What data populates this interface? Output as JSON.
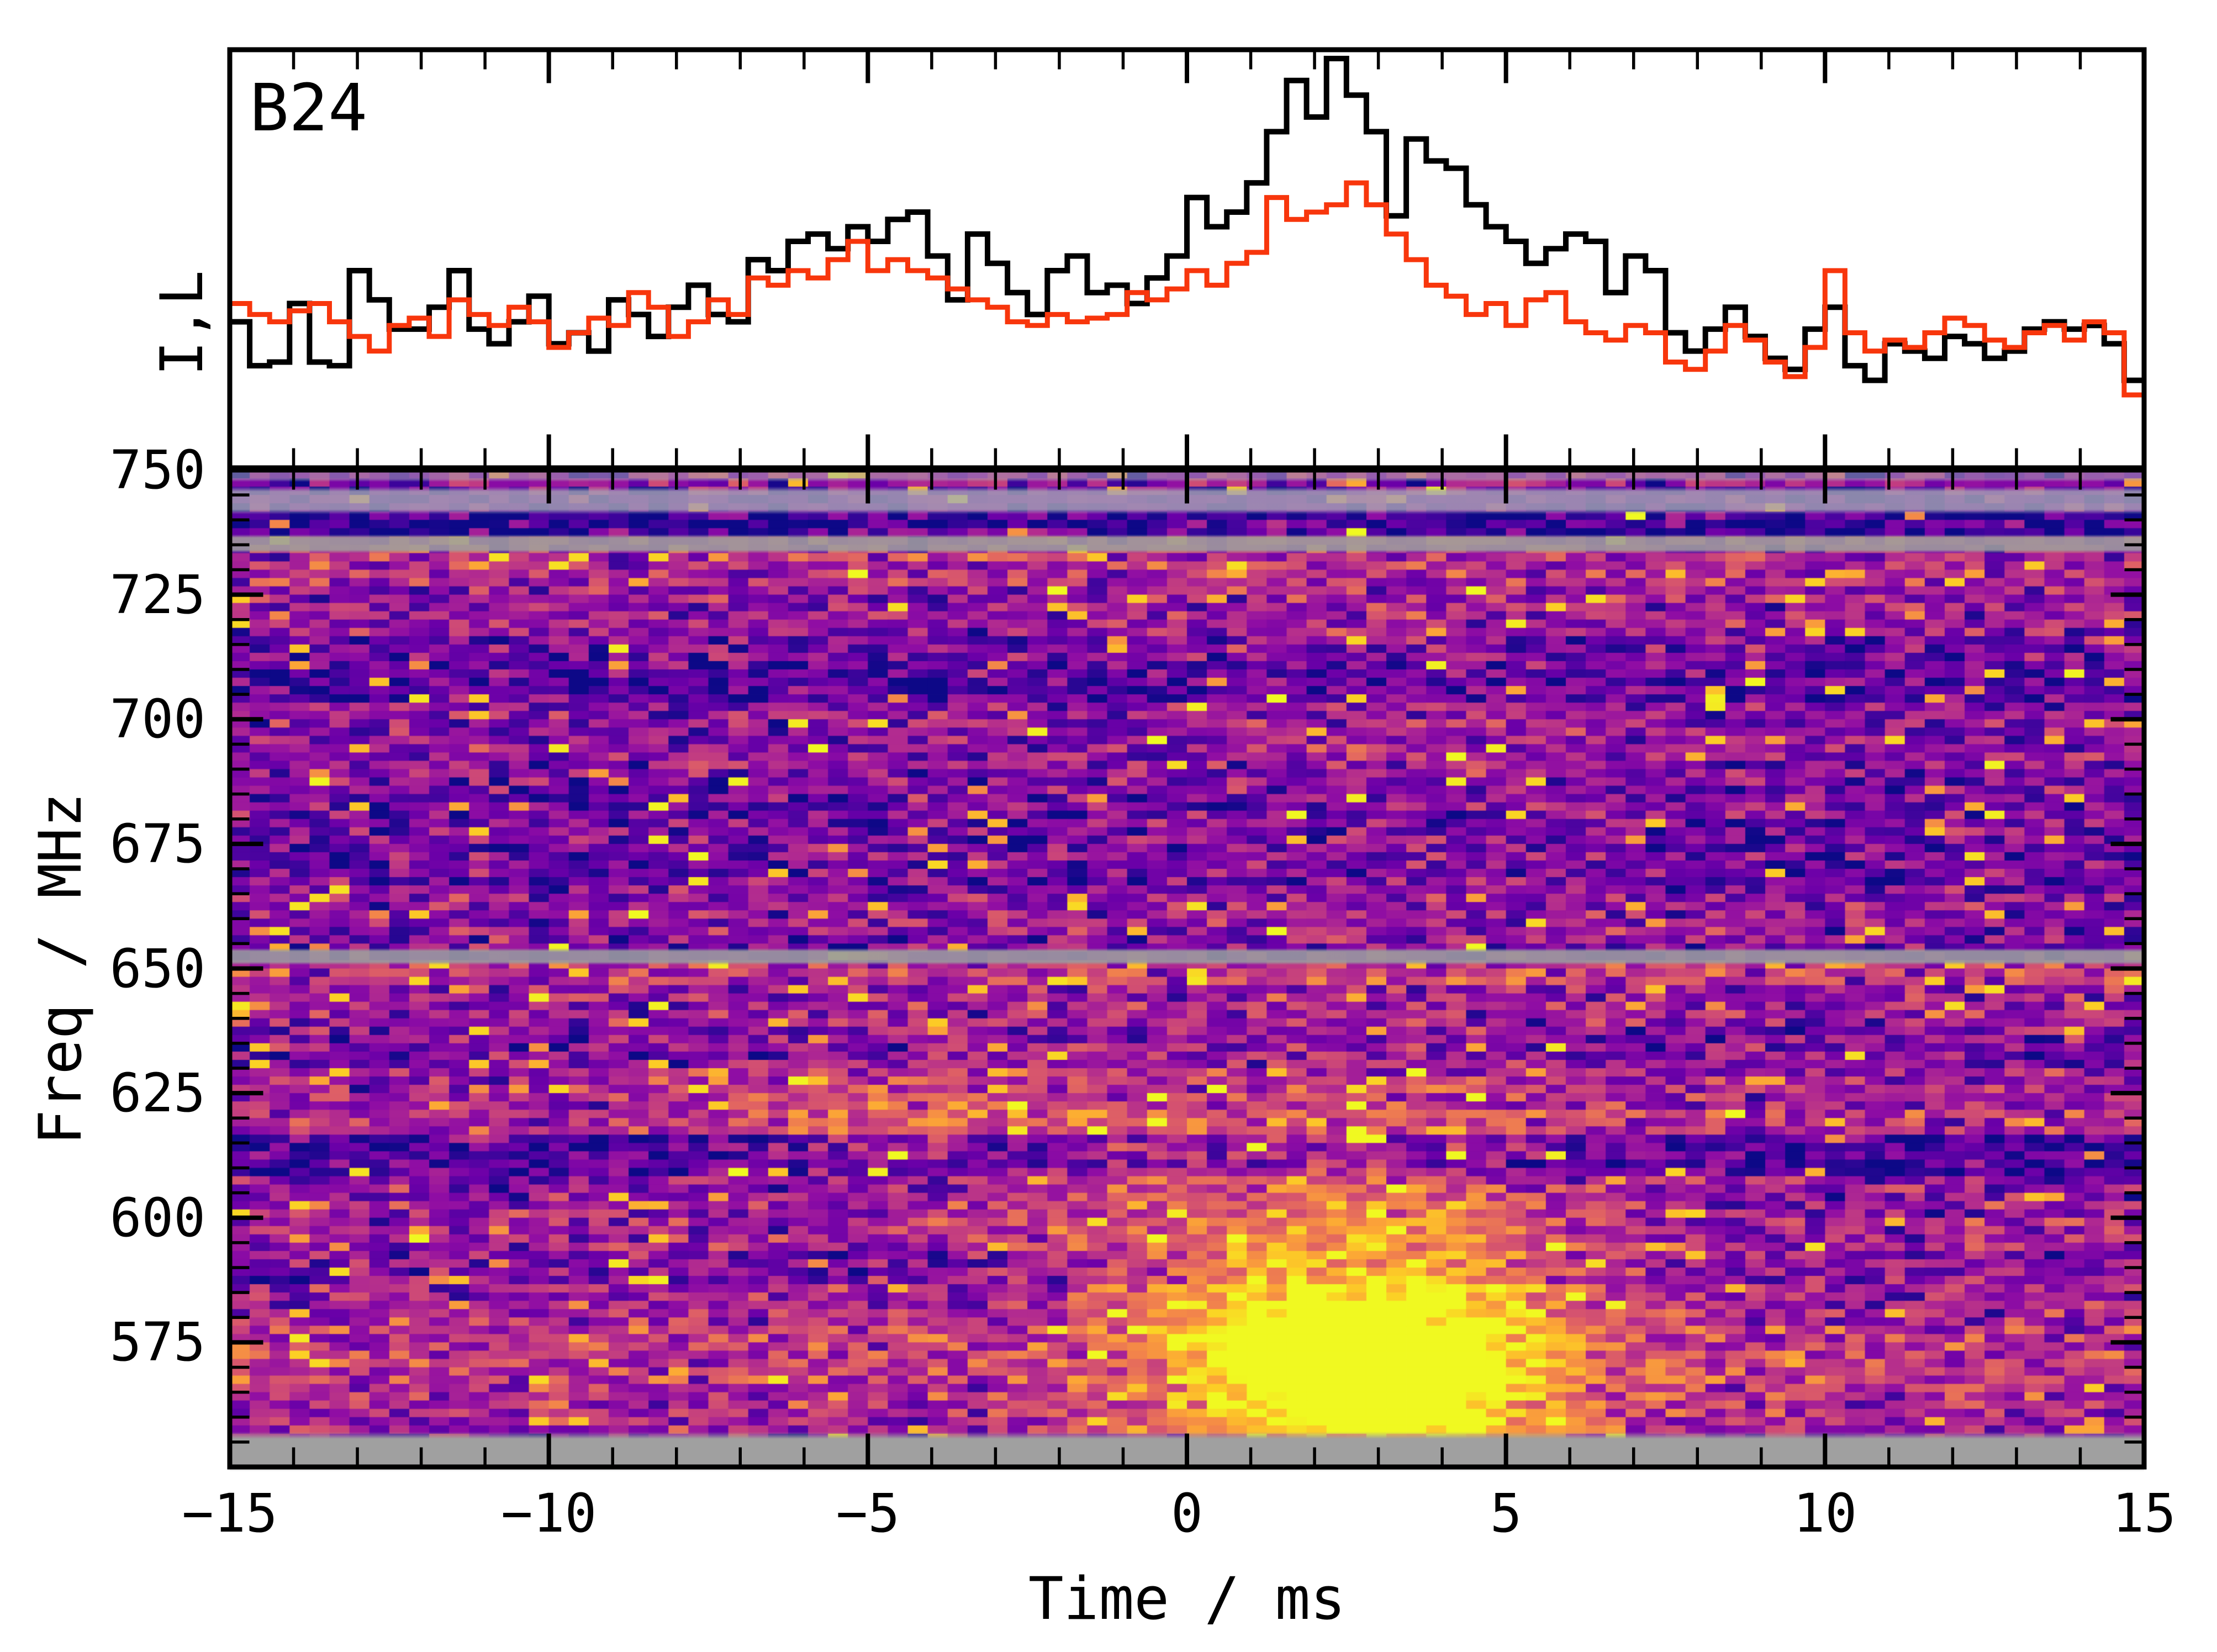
{
  "figure": {
    "background": "#ffffff",
    "burst_label": "B24"
  },
  "labels": {
    "profile_ylabel": "I,L",
    "freq_axis_label": "Freq / MHz",
    "time_axis_label": "Time / ms"
  },
  "colors": {
    "intensity_line": "#000000",
    "linear_pol_line": "#f8360c",
    "masked_channel_gray": "#9d9aa0",
    "axes": "#000000",
    "background": "#ffffff"
  },
  "chart_data": [
    {
      "type": "line",
      "panel": "profile",
      "title": "B24",
      "ylabel": "I,L",
      "style": "steps",
      "legend": "none",
      "xlim": [
        -15,
        15
      ],
      "x_start": -15,
      "x_step": 0.3125,
      "series": [
        {
          "name": "I",
          "color": "#000000",
          "linewidth": 10,
          "values": [
            0.28,
            0.16,
            0.17,
            0.33,
            0.17,
            0.16,
            0.42,
            0.34,
            0.26,
            0.26,
            0.32,
            0.42,
            0.26,
            0.22,
            0.28,
            0.35,
            0.22,
            0.25,
            0.2,
            0.34,
            0.3,
            0.24,
            0.32,
            0.38,
            0.3,
            0.28,
            0.45,
            0.42,
            0.5,
            0.52,
            0.48,
            0.54,
            0.5,
            0.56,
            0.58,
            0.46,
            0.34,
            0.52,
            0.44,
            0.36,
            0.3,
            0.42,
            0.46,
            0.36,
            0.38,
            0.33,
            0.4,
            0.46,
            0.62,
            0.54,
            0.58,
            0.66,
            0.8,
            0.94,
            0.84,
            1.0,
            0.9,
            0.8,
            0.57,
            0.78,
            0.72,
            0.7,
            0.6,
            0.54,
            0.5,
            0.44,
            0.48,
            0.52,
            0.5,
            0.36,
            0.46,
            0.42,
            0.25,
            0.2,
            0.26,
            0.32,
            0.24,
            0.18,
            0.15,
            0.26,
            0.32,
            0.16,
            0.12,
            0.22,
            0.2,
            0.18,
            0.24,
            0.22,
            0.18,
            0.2,
            0.26,
            0.28,
            0.26,
            0.27,
            0.22,
            0.12
          ]
        },
        {
          "name": "L",
          "color": "#f8360c",
          "linewidth": 9,
          "values": [
            0.33,
            0.3,
            0.28,
            0.31,
            0.33,
            0.28,
            0.24,
            0.2,
            0.27,
            0.29,
            0.24,
            0.34,
            0.3,
            0.27,
            0.32,
            0.28,
            0.21,
            0.25,
            0.29,
            0.27,
            0.36,
            0.32,
            0.24,
            0.28,
            0.34,
            0.3,
            0.4,
            0.38,
            0.42,
            0.4,
            0.45,
            0.5,
            0.42,
            0.45,
            0.42,
            0.4,
            0.37,
            0.34,
            0.32,
            0.28,
            0.27,
            0.3,
            0.28,
            0.29,
            0.3,
            0.36,
            0.34,
            0.37,
            0.42,
            0.38,
            0.44,
            0.47,
            0.62,
            0.56,
            0.58,
            0.6,
            0.66,
            0.6,
            0.52,
            0.45,
            0.38,
            0.35,
            0.3,
            0.33,
            0.27,
            0.34,
            0.36,
            0.28,
            0.25,
            0.23,
            0.27,
            0.25,
            0.17,
            0.15,
            0.2,
            0.27,
            0.23,
            0.17,
            0.13,
            0.21,
            0.42,
            0.25,
            0.2,
            0.23,
            0.21,
            0.25,
            0.29,
            0.27,
            0.23,
            0.21,
            0.25,
            0.27,
            0.23,
            0.28,
            0.25,
            0.08
          ]
        }
      ]
    },
    {
      "type": "heatmap",
      "panel": "spectrogram",
      "xlabel": "Time / ms",
      "ylabel": "Freq / MHz",
      "xlim": [
        -15,
        15
      ],
      "ylim": [
        550,
        750
      ],
      "x_tick_labels": [
        "−15",
        "−10",
        "−5",
        "0",
        "5",
        "10",
        "15"
      ],
      "x_ticks": [
        -15,
        -10,
        -5,
        0,
        5,
        10,
        15
      ],
      "x_minor_step": 1,
      "y_tick_labels": [
        "750",
        "725",
        "700",
        "675",
        "650",
        "625",
        "600",
        "575"
      ],
      "y_ticks": [
        750,
        725,
        700,
        675,
        650,
        625,
        600,
        575
      ],
      "y_minor_step": 5,
      "n_time_bins": 96,
      "n_freq_channels": 120,
      "colormap": "plasma",
      "masked_color": "#9d9aa0",
      "masked_bands_mhz": [
        [
          750.0,
          748.5,
          0.55,
          "#a7a3b4"
        ],
        [
          745.8,
          742.0,
          0.82,
          "#a7a3b4"
        ],
        [
          736.2,
          734.2,
          0.88,
          "#9e9e9e"
        ],
        [
          653.2,
          651.6,
          0.9,
          "#9a99a0"
        ],
        [
          556.2,
          550.0,
          1.0,
          "#a0a0a0"
        ]
      ],
      "row_base_segments": [
        [
          750,
          746,
          0.3
        ],
        [
          746,
          742,
          0.18
        ],
        [
          742,
          737,
          0.08
        ],
        [
          737,
          726,
          0.42
        ],
        [
          726,
          716,
          0.34
        ],
        [
          716,
          711,
          0.24
        ],
        [
          711,
          703,
          0.15
        ],
        [
          703,
          688,
          0.3
        ],
        [
          688,
          676,
          0.24
        ],
        [
          676,
          667,
          0.21
        ],
        [
          667,
          656,
          0.3
        ],
        [
          656,
          651,
          0.26
        ],
        [
          651,
          646,
          0.46
        ],
        [
          646,
          638,
          0.33
        ],
        [
          638,
          630,
          0.26
        ],
        [
          630,
          622,
          0.36
        ],
        [
          622,
          616,
          0.43
        ],
        [
          616,
          609,
          0.13
        ],
        [
          609,
          603,
          0.3
        ],
        [
          603,
          594,
          0.36
        ],
        [
          594,
          586,
          0.28
        ],
        [
          586,
          578,
          0.38
        ],
        [
          578,
          566,
          0.47
        ],
        [
          566,
          556,
          0.42
        ],
        [
          556,
          550,
          0.3
        ]
      ],
      "bursts": [
        {
          "t0": 2.9,
          "f0": 569,
          "sigma_t": 2.0,
          "sigma_f": 13,
          "amp": 0.95
        },
        {
          "t0": 2.2,
          "f0": 594,
          "sigma_t": 2.6,
          "sigma_f": 18,
          "amp": 0.3
        },
        {
          "t0": -4.3,
          "f0": 621,
          "sigma_t": 2.2,
          "sigma_f": 8,
          "amp": 0.22
        }
      ],
      "column_glow": {
        "t0": 2.8,
        "sigma_t": 3.0,
        "amp": 0.05
      },
      "noise": {
        "seed": 7,
        "spread": 0.34,
        "hot_fraction": 0.035
      }
    }
  ]
}
